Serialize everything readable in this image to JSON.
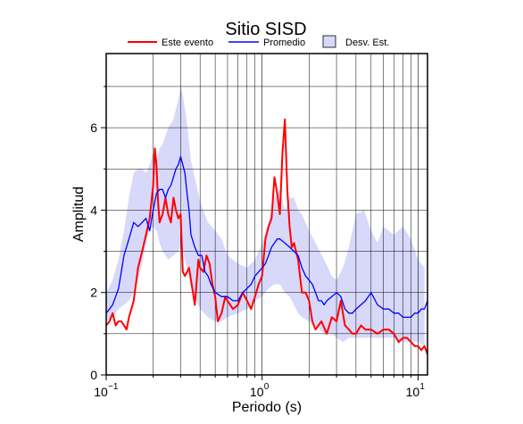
{
  "chart_data": {
    "type": "line",
    "title": "Sitio SISD",
    "xlabel": "Periodo (s)",
    "ylabel": "Amplitud",
    "xscale": "log",
    "xlim": [
      0.1,
      11.5
    ],
    "ylim": [
      0,
      7.8
    ],
    "grid": true,
    "legend_position": "top",
    "x_ticks": [
      {
        "base": "10",
        "exp": "−1"
      },
      {
        "base": "10",
        "exp": "0"
      },
      {
        "base": "10",
        "exp": "1"
      }
    ],
    "y_ticks": [
      "0",
      "2",
      "4",
      "6"
    ],
    "legend": [
      {
        "label": "Este evento",
        "kind": "line",
        "color": "#ff0000"
      },
      {
        "label": "Promedio",
        "kind": "line",
        "color": "#0000ff"
      },
      {
        "label": "Desv. Est.",
        "kind": "band",
        "color": "#d8d8fa"
      }
    ],
    "band": {
      "name": "Desv. Est.",
      "color": "#d8d8fa",
      "x": [
        0.1,
        0.11,
        0.12,
        0.13,
        0.14,
        0.15,
        0.16,
        0.17,
        0.18,
        0.19,
        0.2,
        0.21,
        0.22,
        0.23,
        0.25,
        0.27,
        0.29,
        0.3,
        0.31,
        0.33,
        0.35,
        0.38,
        0.4,
        0.45,
        0.5,
        0.55,
        0.6,
        0.7,
        0.8,
        0.9,
        1.0,
        1.1,
        1.2,
        1.3,
        1.4,
        1.5,
        1.6,
        1.7,
        1.8,
        2.0,
        2.2,
        2.5,
        2.8,
        3.0,
        3.3,
        3.6,
        4.0,
        4.5,
        5.0,
        5.5,
        6.0,
        7.0,
        8.0,
        9.0,
        10.0,
        11.0
      ],
      "upper": [
        2.0,
        2.3,
        2.8,
        3.5,
        4.3,
        4.9,
        5.0,
        5.0,
        4.9,
        5.1,
        5.4,
        5.2,
        5.5,
        5.6,
        6.0,
        6.2,
        6.7,
        7.0,
        6.8,
        6.1,
        5.2,
        4.6,
        4.2,
        3.7,
        3.5,
        3.3,
        2.9,
        2.7,
        2.6,
        2.8,
        3.2,
        3.7,
        4.3,
        4.5,
        4.0,
        4.3,
        4.3,
        4.0,
        3.9,
        3.5,
        3.2,
        2.8,
        2.4,
        2.3,
        2.6,
        3.1,
        3.9,
        4.0,
        3.5,
        3.2,
        3.6,
        3.4,
        3.6,
        3.3,
        2.8,
        2.6
      ],
      "lower": [
        1.3,
        1.4,
        1.6,
        1.7,
        1.8,
        2.0,
        2.3,
        2.7,
        3.2,
        3.5,
        3.6,
        3.5,
        3.2,
        3.0,
        2.8,
        2.9,
        3.0,
        3.1,
        3.0,
        2.6,
        2.2,
        1.8,
        1.6,
        1.4,
        1.3,
        1.3,
        1.4,
        1.5,
        1.6,
        1.8,
        1.9,
        2.1,
        2.2,
        2.2,
        2.0,
        1.9,
        1.7,
        1.5,
        1.4,
        1.3,
        1.2,
        1.0,
        1.0,
        0.9,
        0.8,
        0.9,
        0.9,
        0.9,
        0.9,
        0.9,
        0.9,
        0.9,
        0.8,
        0.8,
        0.8,
        0.7
      ]
    },
    "series": [
      {
        "name": "Este evento",
        "color": "#ff0000",
        "x": [
          0.1,
          0.105,
          0.11,
          0.115,
          0.12,
          0.125,
          0.13,
          0.135,
          0.14,
          0.145,
          0.15,
          0.16,
          0.17,
          0.18,
          0.19,
          0.2,
          0.205,
          0.21,
          0.215,
          0.22,
          0.23,
          0.24,
          0.25,
          0.26,
          0.27,
          0.28,
          0.29,
          0.3,
          0.31,
          0.32,
          0.33,
          0.34,
          0.35,
          0.37,
          0.39,
          0.4,
          0.42,
          0.44,
          0.46,
          0.48,
          0.5,
          0.52,
          0.55,
          0.58,
          0.6,
          0.65,
          0.7,
          0.75,
          0.8,
          0.85,
          0.9,
          0.95,
          1.0,
          1.05,
          1.1,
          1.15,
          1.2,
          1.25,
          1.3,
          1.35,
          1.4,
          1.45,
          1.5,
          1.55,
          1.6,
          1.7,
          1.8,
          1.9,
          2.0,
          2.1,
          2.2,
          2.4,
          2.6,
          2.8,
          3.0,
          3.2,
          3.4,
          3.6,
          3.8,
          4.0,
          4.3,
          4.6,
          5.0,
          5.5,
          6.0,
          6.5,
          7.0,
          7.5,
          8.0,
          8.5,
          9.0,
          9.5,
          10.0,
          10.5,
          11.0,
          11.5
        ],
        "y": [
          1.2,
          1.3,
          1.5,
          1.2,
          1.3,
          1.3,
          1.2,
          1.1,
          1.4,
          1.6,
          1.8,
          2.6,
          3.0,
          3.4,
          3.8,
          4.6,
          5.5,
          5.1,
          4.2,
          3.7,
          3.9,
          4.3,
          3.9,
          3.7,
          4.3,
          4.0,
          3.8,
          3.9,
          2.5,
          2.4,
          2.5,
          2.6,
          2.3,
          1.7,
          2.8,
          2.6,
          2.5,
          2.9,
          2.7,
          2.2,
          1.9,
          1.3,
          1.5,
          1.9,
          1.8,
          1.6,
          1.7,
          2.0,
          1.8,
          1.6,
          1.9,
          2.2,
          2.4,
          3.3,
          3.6,
          3.8,
          4.8,
          4.4,
          3.9,
          5.4,
          6.2,
          4.5,
          3.6,
          3.1,
          3.2,
          2.8,
          2.0,
          2.0,
          1.8,
          1.3,
          1.1,
          1.3,
          1.0,
          1.4,
          1.3,
          1.8,
          1.2,
          1.1,
          1.0,
          1.0,
          1.2,
          1.1,
          1.1,
          1.0,
          1.1,
          1.1,
          1.0,
          0.8,
          0.9,
          0.9,
          0.8,
          0.7,
          0.7,
          0.6,
          0.7,
          0.5
        ]
      },
      {
        "name": "Promedio",
        "color": "#0000ff",
        "x": [
          0.1,
          0.105,
          0.11,
          0.115,
          0.12,
          0.125,
          0.13,
          0.14,
          0.15,
          0.16,
          0.17,
          0.18,
          0.19,
          0.2,
          0.21,
          0.22,
          0.23,
          0.24,
          0.25,
          0.26,
          0.27,
          0.28,
          0.29,
          0.3,
          0.31,
          0.32,
          0.33,
          0.34,
          0.35,
          0.37,
          0.39,
          0.41,
          0.43,
          0.45,
          0.47,
          0.5,
          0.55,
          0.6,
          0.65,
          0.7,
          0.75,
          0.8,
          0.85,
          0.9,
          0.95,
          1.0,
          1.05,
          1.1,
          1.15,
          1.2,
          1.25,
          1.3,
          1.4,
          1.5,
          1.6,
          1.7,
          1.8,
          1.9,
          2.0,
          2.1,
          2.2,
          2.3,
          2.4,
          2.5,
          2.6,
          2.8,
          3.0,
          3.2,
          3.4,
          3.6,
          3.8,
          4.0,
          4.3,
          4.6,
          5.0,
          5.5,
          6.0,
          6.5,
          7.0,
          7.5,
          8.0,
          8.5,
          9.0,
          9.5,
          10.0,
          10.5,
          11.0,
          11.5
        ],
        "y": [
          1.5,
          1.6,
          1.7,
          1.9,
          2.1,
          2.5,
          2.9,
          3.3,
          3.7,
          3.6,
          3.7,
          3.8,
          3.5,
          4.0,
          4.4,
          4.5,
          4.5,
          4.3,
          4.5,
          4.6,
          4.8,
          5.0,
          5.1,
          5.3,
          5.1,
          4.9,
          4.4,
          4.0,
          3.4,
          3.1,
          2.9,
          2.9,
          2.5,
          2.4,
          2.2,
          2.0,
          1.9,
          1.9,
          1.8,
          1.8,
          2.0,
          2.1,
          2.2,
          2.4,
          2.5,
          2.6,
          2.7,
          2.9,
          3.1,
          3.2,
          3.3,
          3.3,
          3.2,
          3.1,
          3.0,
          2.9,
          2.6,
          2.4,
          2.3,
          2.2,
          2.0,
          1.8,
          1.8,
          1.7,
          1.8,
          1.9,
          2.0,
          1.9,
          1.6,
          1.5,
          1.5,
          1.6,
          1.7,
          1.8,
          2.0,
          1.7,
          1.6,
          1.6,
          1.5,
          1.5,
          1.4,
          1.4,
          1.4,
          1.5,
          1.5,
          1.6,
          1.6,
          1.8
        ]
      }
    ]
  }
}
